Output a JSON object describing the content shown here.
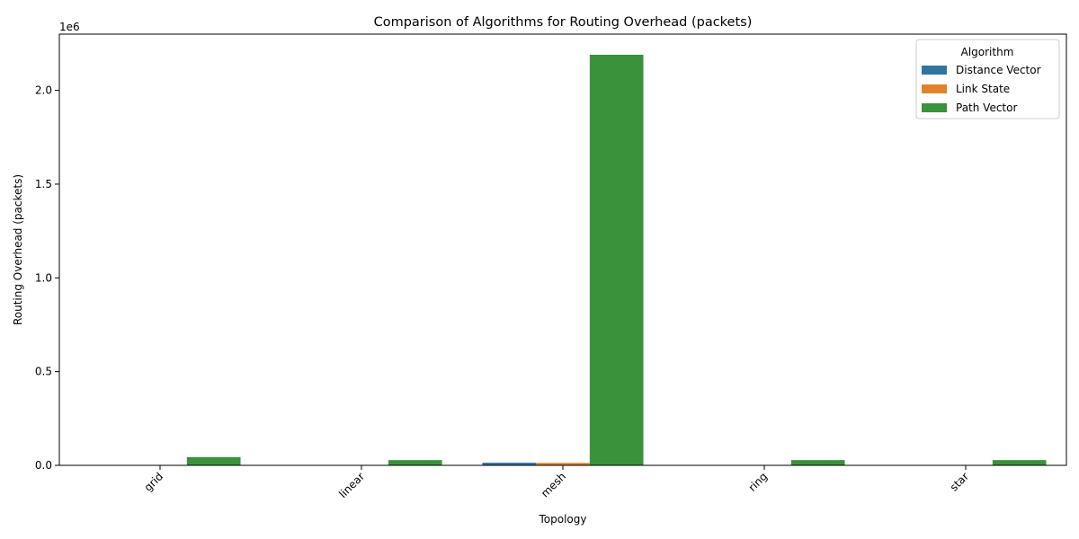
{
  "chart_data": {
    "type": "bar",
    "title": "Comparison of Algorithms for Routing Overhead (packets)",
    "xlabel": "Topology",
    "ylabel": "Routing Overhead (packets)",
    "offset_label": "1e6",
    "categories": [
      "grid",
      "linear",
      "mesh",
      "ring",
      "star"
    ],
    "series": [
      {
        "name": "Distance Vector",
        "color": "#3274a1",
        "values": [
          1500,
          400,
          14000,
          500,
          400
        ]
      },
      {
        "name": "Link State",
        "color": "#e1812c",
        "values": [
          1800,
          300,
          13000,
          450,
          300
        ]
      },
      {
        "name": "Path Vector",
        "color": "#3a923a",
        "values": [
          44000,
          28000,
          2190000,
          28000,
          28000
        ]
      }
    ],
    "ylim": [
      0,
      2300000
    ],
    "yticks": [
      0,
      500000,
      1000000,
      1500000,
      2000000
    ],
    "ytick_labels": [
      "0.0",
      "0.5",
      "1.0",
      "1.5",
      "2.0"
    ],
    "legend": {
      "title": "Algorithm",
      "placement": "top-right"
    },
    "grid": false
  }
}
